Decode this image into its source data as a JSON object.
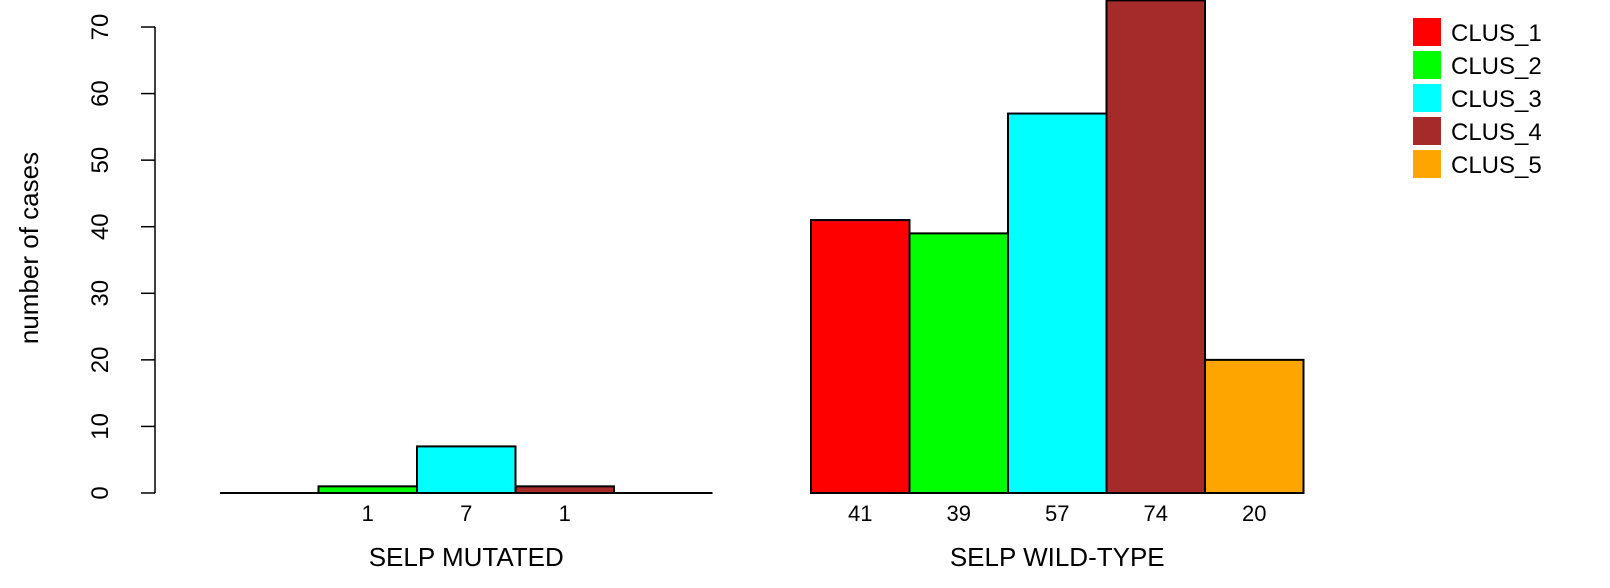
{
  "chart_data": {
    "type": "bar",
    "ylabel": "number of cases",
    "ylim": [
      0,
      70
    ],
    "y_ticks": [
      0,
      10,
      20,
      30,
      40,
      50,
      60,
      70
    ],
    "groups": [
      {
        "label": "SELP MUTATED",
        "counts": [
          "",
          "1",
          "7",
          "1",
          ""
        ]
      },
      {
        "label": "SELP WILD-TYPE",
        "counts": [
          "41",
          "39",
          "57",
          "74",
          "20"
        ]
      }
    ],
    "series": [
      {
        "name": "CLUS_1",
        "color": "#ff0000",
        "values": [
          0,
          41
        ]
      },
      {
        "name": "CLUS_2",
        "color": "#00ff00",
        "values": [
          1,
          39
        ]
      },
      {
        "name": "CLUS_3",
        "color": "#00ffff",
        "values": [
          7,
          57
        ]
      },
      {
        "name": "CLUS_4",
        "color": "#a52a2a",
        "values": [
          1,
          74
        ]
      },
      {
        "name": "CLUS_5",
        "color": "#ffa500",
        "values": [
          0,
          20
        ]
      }
    ],
    "legend_position": "top-right"
  }
}
